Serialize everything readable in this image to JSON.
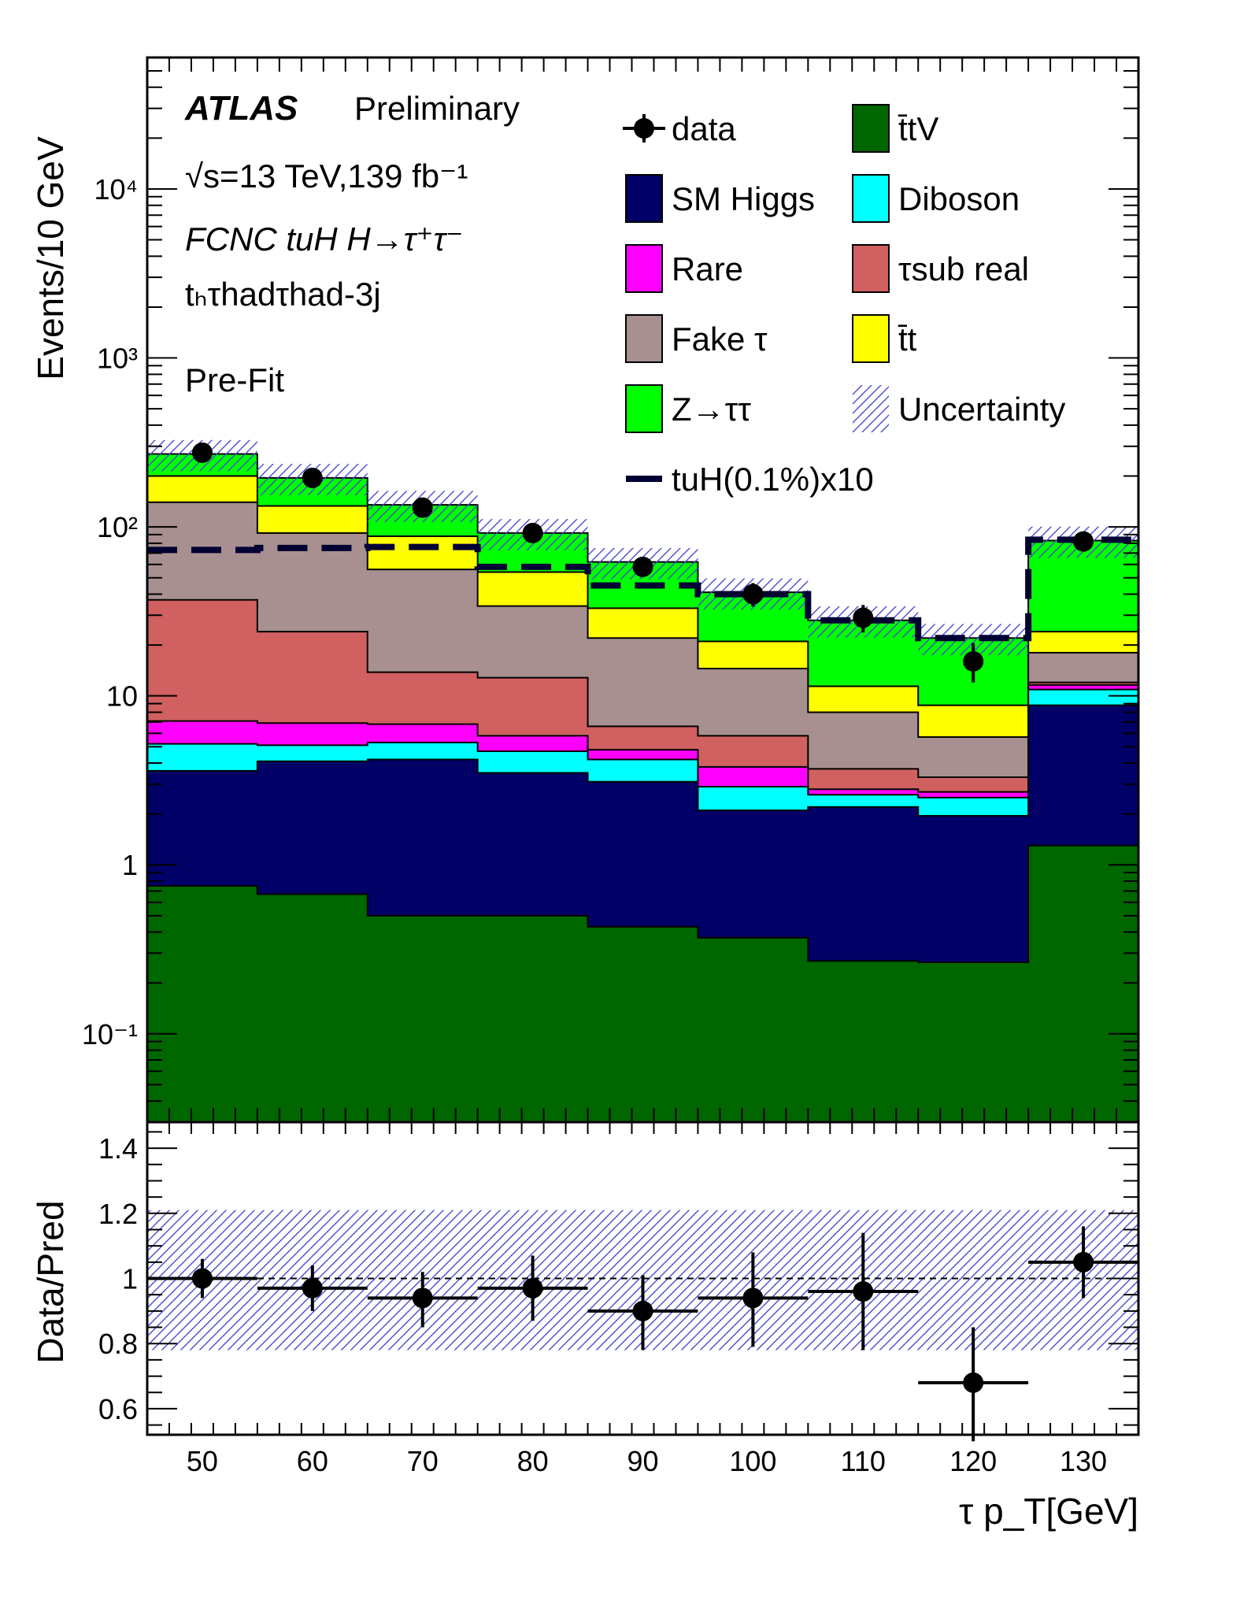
{
  "chart_data": {
    "type": "stacked-histogram",
    "annotations": {
      "experiment": "ATLAS",
      "status": "Preliminary",
      "energy_lumi": "√s=13 TeV,139 fb⁻¹",
      "process": "FCNC tuH H→τ⁺τ⁻",
      "channel": "tₕτhadτhad-3j",
      "fit_state": "Pre-Fit"
    },
    "x_bin_edges": [
      45,
      55,
      65,
      75,
      85,
      95,
      105,
      115,
      125,
      135
    ],
    "x_ticks": [
      50,
      60,
      70,
      80,
      90,
      100,
      110,
      120,
      130
    ],
    "xlabel": "τ p_T[GeV]",
    "main_panel": {
      "ylabel": "Events/10 GeV",
      "scale": "log",
      "ylim": [
        0.03,
        60000
      ],
      "y_tick_labels": [
        "10⁻¹",
        "1",
        "10",
        "10²",
        "10³",
        "10⁴"
      ],
      "stack_cumulative": [
        {
          "name": "t̄tV",
          "color": "#006600",
          "values": [
            0.75,
            0.67,
            0.5,
            0.5,
            0.43,
            0.37,
            0.27,
            0.265,
            1.3
          ]
        },
        {
          "name": "SM Higgs",
          "color": "#000066",
          "values": [
            3.6,
            4.1,
            4.2,
            3.5,
            3.1,
            2.1,
            2.2,
            1.95,
            8.8
          ]
        },
        {
          "name": "Diboson",
          "color": "#00ffff",
          "values": [
            5.2,
            5.1,
            5.3,
            4.7,
            4.2,
            2.9,
            2.6,
            2.5,
            10.9
          ]
        },
        {
          "name": "Rare",
          "color": "#ff00ff",
          "values": [
            7.1,
            6.9,
            6.8,
            5.8,
            4.8,
            3.8,
            2.8,
            2.7,
            11.6
          ]
        },
        {
          "name": "τsub real",
          "color": "#d16060",
          "values": [
            37,
            24,
            13.8,
            12.8,
            6.6,
            5.8,
            3.7,
            3.3,
            12.0
          ]
        },
        {
          "name": "Fake τ",
          "color": "#a89090",
          "values": [
            140,
            92,
            56,
            34,
            22,
            14.5,
            8.0,
            5.7,
            18.0
          ]
        },
        {
          "name": "t̄t",
          "color": "#ffff00",
          "values": [
            200,
            133,
            88,
            54,
            33,
            21,
            11.4,
            8.8,
            24.0
          ]
        },
        {
          "name": "Z→ττ",
          "color": "#00ff00",
          "values": [
            270,
            195,
            135,
            92,
            62,
            41,
            28,
            22,
            83
          ]
        }
      ],
      "signal": {
        "name": "tuH(0.1%)x10",
        "color": "#000033",
        "values": [
          73,
          75,
          76,
          58,
          45,
          40,
          28,
          22,
          84
        ]
      },
      "data": {
        "name": "data",
        "values": [
          275,
          195,
          130,
          92,
          58,
          40,
          29,
          16,
          82
        ],
        "err_low": [
          16,
          14,
          11,
          9.5,
          7.5,
          6.2,
          5.3,
          4.0,
          9
        ],
        "err_high": [
          17,
          15,
          12,
          10,
          8,
          6.5,
          5.5,
          4.5,
          9.5
        ]
      },
      "uncertainty": {
        "name": "Uncertainty",
        "rel": 0.21
      }
    },
    "ratio_panel": {
      "ylabel": "Data/Pred",
      "ylim": [
        0.52,
        1.48
      ],
      "y_ticks": [
        0.6,
        0.8,
        1,
        1.2,
        1.4
      ],
      "values": [
        1.0,
        0.97,
        0.94,
        0.97,
        0.9,
        0.94,
        0.96,
        0.68,
        1.05
      ],
      "err_low": [
        0.06,
        0.07,
        0.09,
        0.1,
        0.12,
        0.15,
        0.18,
        0.18,
        0.11
      ],
      "err_high": [
        0.06,
        0.07,
        0.08,
        0.1,
        0.11,
        0.14,
        0.18,
        0.17,
        0.11
      ],
      "band_low": 0.78,
      "band_high": 1.21
    },
    "legend": [
      {
        "label": "data",
        "kind": "marker"
      },
      {
        "label": "t̄tV",
        "kind": "fill",
        "color": "#006600"
      },
      {
        "label": "SM Higgs",
        "kind": "fill",
        "color": "#000066"
      },
      {
        "label": "Diboson",
        "kind": "fill",
        "color": "#00ffff"
      },
      {
        "label": "Rare",
        "kind": "fill",
        "color": "#ff00ff"
      },
      {
        "label": "τsub real",
        "kind": "fill",
        "color": "#d16060"
      },
      {
        "label": "Fake τ",
        "kind": "fill",
        "color": "#a89090"
      },
      {
        "label": "t̄t",
        "kind": "fill",
        "color": "#ffff00"
      },
      {
        "label": "Z→ττ",
        "kind": "fill",
        "color": "#00ff00"
      },
      {
        "label": "Uncertainty",
        "kind": "hatch"
      },
      {
        "label": "tuH(0.1%)x10",
        "kind": "line",
        "color": "#000033"
      }
    ]
  }
}
